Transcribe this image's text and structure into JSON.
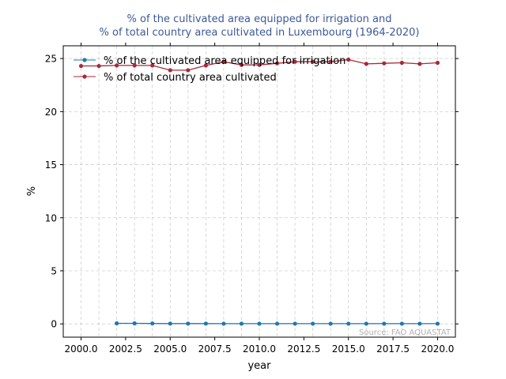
{
  "chart_data": {
    "type": "line",
    "title_line1": "% of the cultivated area equipped for irrigation and",
    "title_line2": "% of total country area cultivated in Luxembourg (1964-2020)",
    "xlabel": "year",
    "ylabel": "%",
    "xlim": [
      1999.0,
      2021.0
    ],
    "ylim": [
      -1.25,
      26.2
    ],
    "x_ticks": [
      2000,
      2002.5,
      2005,
      2007.5,
      2010,
      2012.5,
      2015,
      2017.5,
      2020
    ],
    "x_tick_labels": [
      "2000.0",
      "2002.5",
      "2005.0",
      "2007.5",
      "2010.0",
      "2012.5",
      "2015.0",
      "2017.5",
      "2020.0"
    ],
    "y_ticks": [
      0,
      5,
      10,
      15,
      20,
      25
    ],
    "y_tick_labels": [
      "0",
      "5",
      "10",
      "15",
      "20",
      "25"
    ],
    "grid": true,
    "legend_position": "upper-left",
    "source_note": "Source: FAO AQUASTAT",
    "series": [
      {
        "name": "% of the cultivated area equipped for irrigation",
        "color": "#1f77b4",
        "x": [
          2002,
          2003,
          2004,
          2005,
          2006,
          2007,
          2008,
          2009,
          2010,
          2011,
          2012,
          2013,
          2014,
          2015,
          2016,
          2017,
          2018,
          2019,
          2020
        ],
        "values": [
          0.05,
          0.05,
          0.04,
          0.03,
          0.03,
          0.03,
          0.02,
          0.02,
          0.02,
          0.02,
          0.02,
          0.02,
          0.02,
          0.02,
          0.02,
          0.02,
          0.02,
          0.02,
          0.02
        ]
      },
      {
        "name": "% of total country area cultivated",
        "color": "#a52a3a",
        "x": [
          2000,
          2001,
          2002,
          2003,
          2004,
          2005,
          2006,
          2007,
          2008,
          2009,
          2010,
          2011,
          2012,
          2013,
          2014,
          2015,
          2016,
          2017,
          2018,
          2019,
          2020
        ],
        "values": [
          24.3,
          24.3,
          24.35,
          24.35,
          24.35,
          23.9,
          23.9,
          24.35,
          24.7,
          24.4,
          24.4,
          24.55,
          24.7,
          24.7,
          24.7,
          24.9,
          24.5,
          24.55,
          24.6,
          24.5,
          24.6
        ]
      }
    ]
  }
}
